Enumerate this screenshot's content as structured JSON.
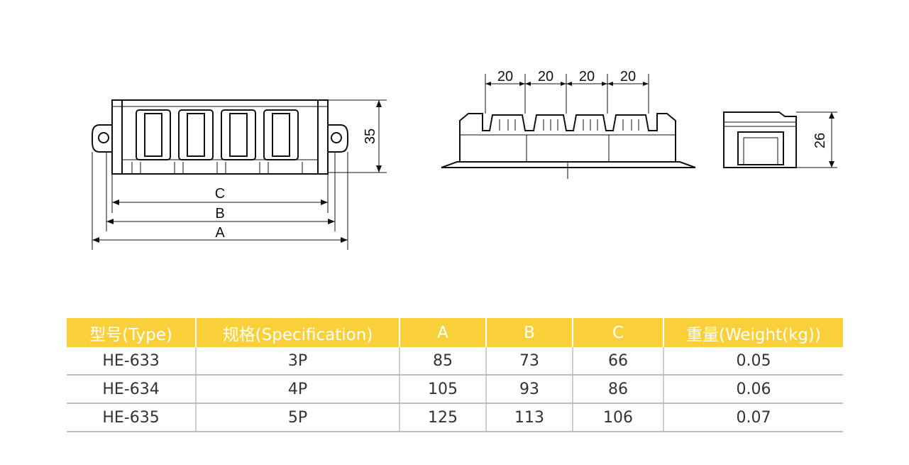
{
  "drawings": {
    "front_view": {
      "label_c": "C",
      "label_b": "B",
      "label_a": "A",
      "height_dim": "35"
    },
    "top_view": {
      "pitch_dims": [
        "20",
        "20",
        "20",
        "20"
      ]
    },
    "side_view": {
      "height_dim": "26"
    }
  },
  "table": {
    "headers": [
      "型号(Type)",
      "规格(Specification)",
      "A",
      "B",
      "C",
      "重量(Weight(kg))"
    ],
    "rows": [
      [
        "HE-633",
        "3P",
        "85",
        "73",
        "66",
        "0.05"
      ],
      [
        "HE-634",
        "4P",
        "105",
        "93",
        "86",
        "0.06"
      ],
      [
        "HE-635",
        "5P",
        "125",
        "113",
        "106",
        "0.07"
      ]
    ]
  },
  "colors": {
    "header_bg": "#f9cf3a",
    "header_text": "#ffffff",
    "row_line": "#bdbdbd"
  }
}
